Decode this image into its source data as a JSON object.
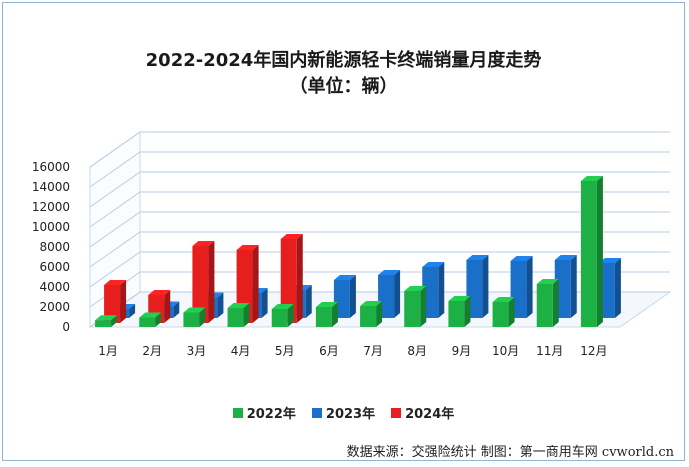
{
  "chart_data": {
    "type": "bar",
    "title": "2022-2024年国内新能源轻卡终端销量月度走势",
    "subtitle": "（单位：辆）",
    "categories": [
      "1月",
      "2月",
      "3月",
      "4月",
      "5月",
      "6月",
      "7月",
      "8月",
      "9月",
      "10月",
      "11月",
      "12月"
    ],
    "series": [
      {
        "name": "2022年",
        "color": "#1db044",
        "values": [
          680,
          950,
          1450,
          1900,
          1800,
          2000,
          2100,
          3600,
          2600,
          2500,
          4300,
          14600
        ]
      },
      {
        "name": "2023年",
        "color": "#1a6fc9",
        "values": [
          900,
          1150,
          2050,
          2500,
          2800,
          3800,
          4300,
          5100,
          5800,
          5700,
          5800,
          5500
        ]
      },
      {
        "name": "2024年",
        "color": "#e61e1e",
        "values": [
          3800,
          2800,
          7700,
          7300,
          8400,
          null,
          null,
          null,
          null,
          null,
          null,
          null
        ]
      }
    ],
    "ylim": [
      0,
      16000
    ],
    "yticks": [
      "0",
      "2000",
      "4000",
      "6000",
      "8000",
      "10000",
      "12000",
      "14000",
      "16000"
    ],
    "xlabel": "",
    "ylabel": "",
    "grid": true,
    "legend_position": "bottom"
  },
  "source": "数据来源：交强险统计 制图：第一商用车网 cvworld.cn"
}
